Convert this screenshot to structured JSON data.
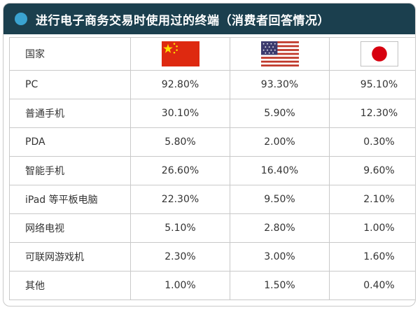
{
  "title": "进行电子商务交易时使用过的终端（消费者回答情况）",
  "header_label": "国家",
  "flags": [
    {
      "country": "China",
      "icon": "china-flag-icon"
    },
    {
      "country": "USA",
      "icon": "usa-flag-icon"
    },
    {
      "country": "Japan",
      "icon": "japan-flag-icon"
    }
  ],
  "rows": [
    {
      "label": "PC",
      "values": [
        "92.80%",
        "93.30%",
        "95.10%"
      ]
    },
    {
      "label": "普通手机",
      "values": [
        "30.10%",
        "5.90%",
        "12.30%"
      ]
    },
    {
      "label": "PDA",
      "values": [
        "5.80%",
        "2.00%",
        "0.30%"
      ]
    },
    {
      "label": "智能手机",
      "values": [
        "26.60%",
        "16.40%",
        "9.60%"
      ]
    },
    {
      "label": "iPad 等平板电脑",
      "values": [
        "22.30%",
        "9.50%",
        "2.10%"
      ]
    },
    {
      "label": "网络电视",
      "values": [
        "5.10%",
        "2.80%",
        "1.00%"
      ]
    },
    {
      "label": "可联网游戏机",
      "values": [
        "2.30%",
        "3.00%",
        "1.60%"
      ]
    },
    {
      "label": "其他",
      "values": [
        "1.00%",
        "1.50%",
        "0.40%"
      ]
    }
  ],
  "colors": {
    "header_bg": "#1b3f4e",
    "dot": "#3aa3d1",
    "border": "#c9c9c9"
  }
}
